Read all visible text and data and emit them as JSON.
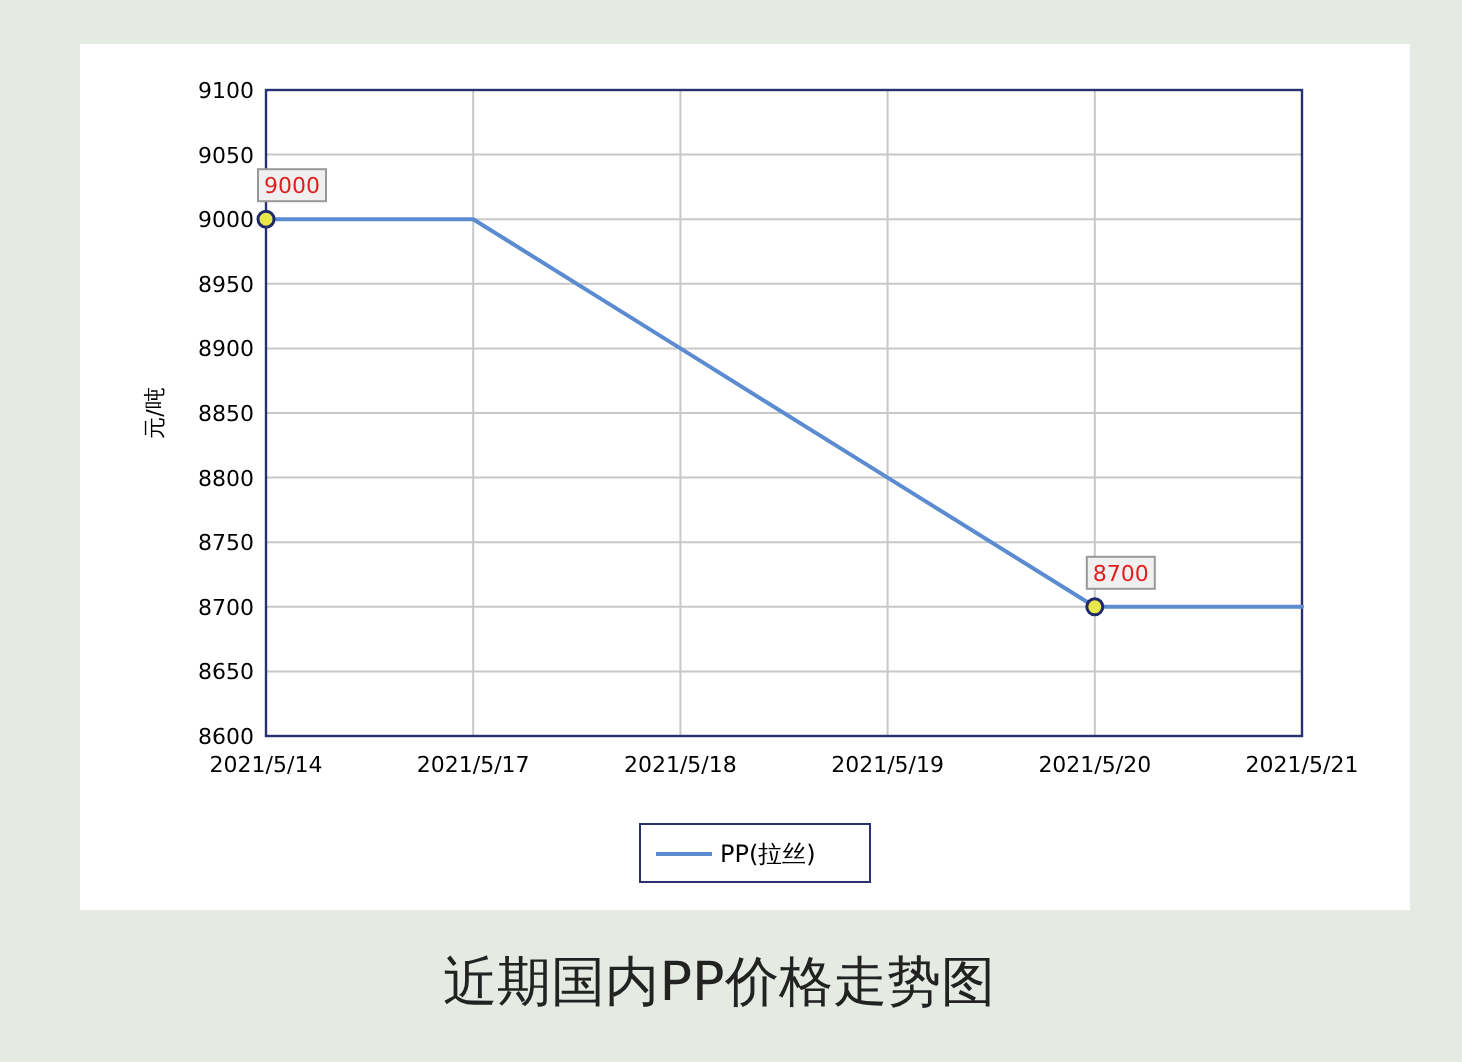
{
  "chart_data": {
    "type": "line",
    "title": "近期国内PP价格走势图",
    "ylabel": "元/吨",
    "categories": [
      "2021/5/14",
      "2021/5/17",
      "2021/5/18",
      "2021/5/19",
      "2021/5/20",
      "2021/5/21"
    ],
    "series": [
      {
        "name": "PP(拉丝)",
        "color": "#5b8bd0",
        "values": [
          9000,
          9000,
          8900,
          8800,
          8700,
          8700
        ],
        "value_labels": [
          "9000",
          null,
          null,
          null,
          "8700",
          null
        ]
      }
    ],
    "ylim": [
      8600,
      9100
    ],
    "yticks": [
      8600,
      8650,
      8700,
      8750,
      8800,
      8850,
      8900,
      8950,
      9000,
      9050,
      9100
    ],
    "grid": true,
    "legend": "bottom"
  }
}
